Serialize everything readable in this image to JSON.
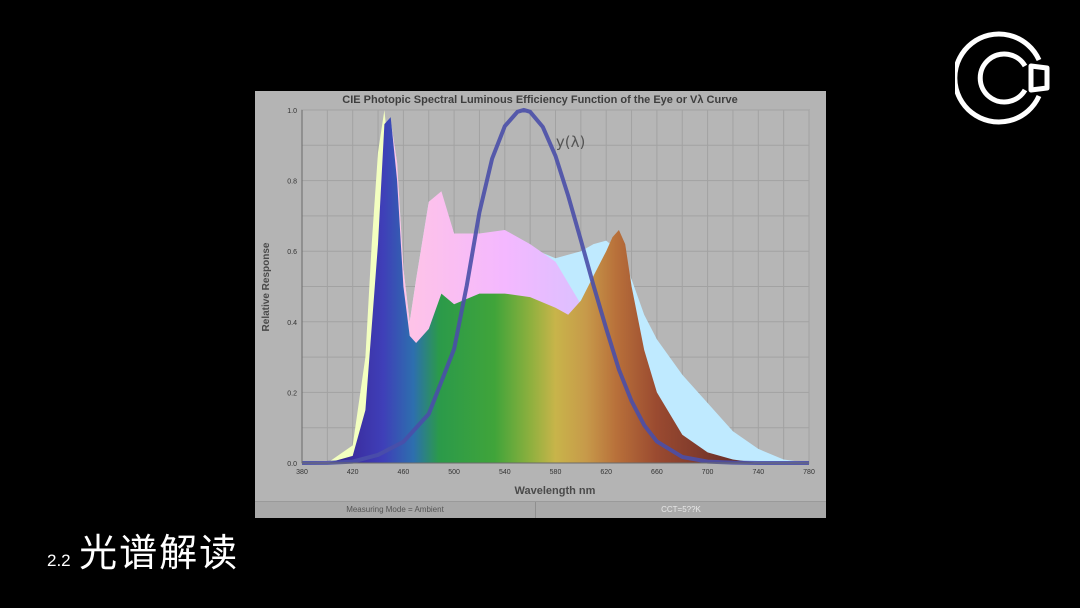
{
  "slide": {
    "section_number": "2.2",
    "section_title": "光谱解读",
    "logo_icon": "c-ring-logo-icon"
  },
  "status": {
    "measuring_mode": "Measuring Mode = Ambient",
    "cct": "CCT=5??K"
  },
  "chart_data": {
    "type": "area",
    "title": "CIE Photopic Spectral Luminous Efficiency Function of the Eye or Vλ Curve",
    "xlabel": "Wavelength nm",
    "ylabel": "Relative Response",
    "xlim": [
      380,
      780
    ],
    "ylim": [
      0,
      1.0
    ],
    "x_ticks": [
      "380",
      "420",
      "460",
      "500",
      "540",
      "580",
      "620",
      "660",
      "700",
      "740",
      "780"
    ],
    "y_ticks": [
      "0.0",
      "0.2",
      "0.4",
      "0.6",
      "0.8",
      "1.0"
    ],
    "grid": true,
    "annotations": [
      {
        "text": "y(λ)",
        "x": 600,
        "y": 0.91
      }
    ],
    "series": [
      {
        "name": "",
        "style": "light-cyan-fill",
        "color": "#bfeaff",
        "x": [
          380,
          420,
          430,
          440,
          445,
          450,
          455,
          460,
          465,
          470,
          480,
          490,
          500,
          520,
          540,
          560,
          580,
          600,
          610,
          620,
          630,
          640,
          650,
          660,
          680,
          700,
          720,
          740,
          760,
          780
        ],
        "y": [
          0.0,
          0.01,
          0.1,
          0.5,
          0.85,
          0.97,
          0.85,
          0.55,
          0.4,
          0.52,
          0.74,
          0.76,
          0.65,
          0.63,
          0.63,
          0.61,
          0.58,
          0.6,
          0.62,
          0.63,
          0.6,
          0.52,
          0.42,
          0.35,
          0.25,
          0.17,
          0.09,
          0.04,
          0.01,
          0.0
        ]
      },
      {
        "name": "",
        "style": "pink-violet-fill",
        "color": "#ffc8e8",
        "x": [
          380,
          420,
          430,
          440,
          445,
          450,
          455,
          460,
          465,
          470,
          480,
          490,
          500,
          520,
          540,
          560,
          580,
          600,
          610,
          620,
          630,
          640,
          650,
          660,
          680,
          700,
          720,
          740,
          760,
          780
        ],
        "y": [
          0.0,
          0.01,
          0.1,
          0.5,
          0.85,
          0.97,
          0.85,
          0.55,
          0.4,
          0.52,
          0.74,
          0.77,
          0.65,
          0.65,
          0.66,
          0.62,
          0.57,
          0.45,
          0.3,
          0.18,
          0.1,
          0.05,
          0.02,
          0.01,
          0.0,
          0.0,
          0.0,
          0.0,
          0.0,
          0.0
        ]
      },
      {
        "name": "",
        "style": "pale-yellow-edge",
        "color": "#f3ffc0",
        "x": [
          400,
          420,
          430,
          435,
          440,
          445,
          450,
          455,
          460,
          465
        ],
        "y": [
          0.0,
          0.05,
          0.3,
          0.62,
          0.88,
          1.0,
          0.82,
          0.55,
          0.35,
          0.0
        ]
      },
      {
        "name": "",
        "style": "rainbow-fill",
        "color": "#3a9a3a",
        "x": [
          380,
          400,
          420,
          430,
          440,
          445,
          450,
          455,
          460,
          465,
          470,
          480,
          490,
          500,
          520,
          540,
          560,
          580,
          590,
          600,
          610,
          620,
          625,
          630,
          635,
          640,
          650,
          660,
          680,
          700,
          720,
          740,
          760,
          780
        ],
        "y": [
          0.0,
          0.0,
          0.02,
          0.15,
          0.62,
          0.96,
          0.98,
          0.8,
          0.5,
          0.36,
          0.34,
          0.38,
          0.48,
          0.45,
          0.48,
          0.48,
          0.47,
          0.44,
          0.42,
          0.46,
          0.53,
          0.6,
          0.64,
          0.66,
          0.62,
          0.5,
          0.32,
          0.2,
          0.08,
          0.03,
          0.01,
          0.0,
          0.0,
          0.0
        ]
      },
      {
        "name": "y(λ)",
        "style": "line",
        "color": "#4a4fa8",
        "x": [
          380,
          400,
          420,
          440,
          460,
          480,
          500,
          510,
          520,
          530,
          540,
          550,
          555,
          560,
          570,
          580,
          590,
          600,
          610,
          620,
          630,
          640,
          650,
          660,
          680,
          700,
          720,
          740,
          780
        ],
        "y": [
          0.0,
          0.0004,
          0.004,
          0.023,
          0.06,
          0.139,
          0.323,
          0.503,
          0.71,
          0.862,
          0.954,
          0.995,
          1.0,
          0.995,
          0.952,
          0.87,
          0.757,
          0.631,
          0.503,
          0.381,
          0.265,
          0.175,
          0.107,
          0.061,
          0.017,
          0.004,
          0.001,
          0.0,
          0.0
        ]
      }
    ]
  }
}
